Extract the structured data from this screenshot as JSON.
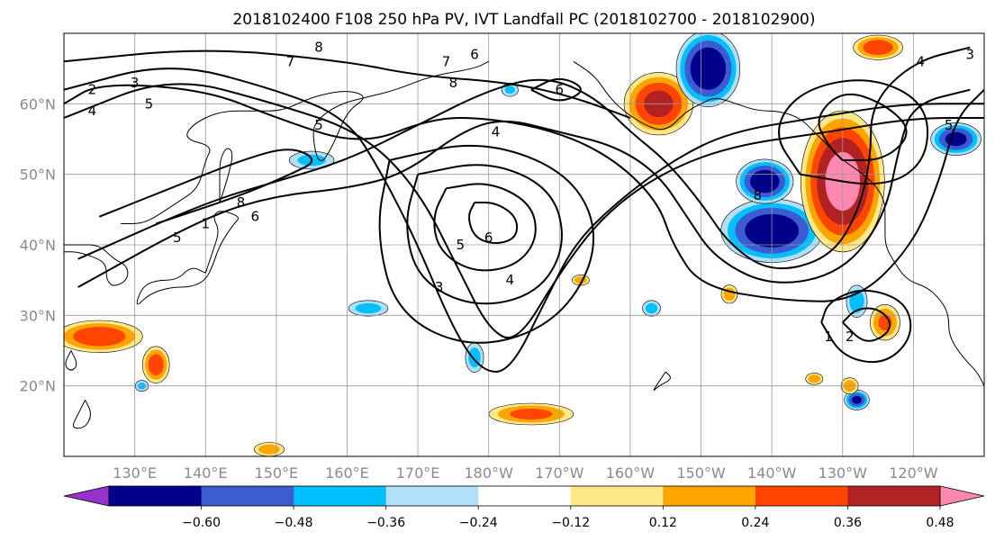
{
  "title": "2018102400 F108 250 hPa PV, IVT Landfall PC (2018102700 - 2018102900)",
  "map": {
    "lon_range": [
      120,
      250
    ],
    "lat_range": [
      10,
      70
    ],
    "lon_ticks": [
      {
        "lon": 130,
        "label": "130°E"
      },
      {
        "lon": 140,
        "label": "140°E"
      },
      {
        "lon": 150,
        "label": "150°E"
      },
      {
        "lon": 160,
        "label": "160°E"
      },
      {
        "lon": 170,
        "label": "170°E"
      },
      {
        "lon": 180,
        "label": "180°W"
      },
      {
        "lon": 190,
        "label": "170°W"
      },
      {
        "lon": 200,
        "label": "160°W"
      },
      {
        "lon": 210,
        "label": "150°W"
      },
      {
        "lon": 220,
        "label": "140°W"
      },
      {
        "lon": 230,
        "label": "130°W"
      },
      {
        "lon": 240,
        "label": "120°W"
      }
    ],
    "lat_ticks": [
      {
        "lat": 20,
        "label": "20°N"
      },
      {
        "lat": 30,
        "label": "30°N"
      },
      {
        "lat": 40,
        "label": "40°N"
      },
      {
        "lat": 50,
        "label": "50°N"
      },
      {
        "lat": 60,
        "label": "60°N"
      }
    ],
    "gridlines": true
  },
  "colorbar": {
    "colors": [
      "#9932cc",
      "#00008b",
      "#3b5bd0",
      "#00bfff",
      "#b0e0f8",
      "#ffffff",
      "#ffe888",
      "#ffa500",
      "#ff4500",
      "#b22222",
      "#ff88b0"
    ],
    "labels": [
      "−0.60",
      "−0.48",
      "−0.36",
      "−0.24",
      "−0.12",
      "0.12",
      "0.24",
      "0.36",
      "0.48",
      "0.60"
    ],
    "extend": "both"
  },
  "ivt_pc_blobs": [
    {
      "lon": 204,
      "lat": 60,
      "a": 5.5,
      "b": 5,
      "value": 0.5
    },
    {
      "lon": 211,
      "lat": 65,
      "a": 5,
      "b": 6,
      "value": -0.58
    },
    {
      "lon": 220,
      "lat": 42,
      "a": 8,
      "b": 5,
      "value": -0.56
    },
    {
      "lon": 219,
      "lat": 49,
      "a": 4.5,
      "b": 3.5,
      "value": -0.55
    },
    {
      "lon": 230,
      "lat": 49,
      "a": 6.5,
      "b": 11,
      "value": 0.64
    },
    {
      "lon": 125,
      "lat": 27,
      "a": 7,
      "b": 2.6,
      "value": 0.44
    },
    {
      "lon": 133,
      "lat": 23,
      "a": 2.2,
      "b": 3,
      "value": 0.42
    },
    {
      "lon": 186,
      "lat": 16,
      "a": 7,
      "b": 1.8,
      "value": 0.38
    },
    {
      "lon": 236,
      "lat": 29,
      "a": 2.5,
      "b": 3,
      "value": 0.36
    },
    {
      "lon": 232,
      "lat": 18,
      "a": 2,
      "b": 1.6,
      "value": -0.48
    },
    {
      "lon": 163,
      "lat": 31,
      "a": 3.5,
      "b": 1.4,
      "value": -0.27
    },
    {
      "lon": 178,
      "lat": 24,
      "a": 1.6,
      "b": 2.6,
      "value": -0.28
    },
    {
      "lon": 155,
      "lat": 52,
      "a": 4,
      "b": 1.6,
      "value": -0.26
    },
    {
      "lon": 246,
      "lat": 55,
      "a": 4,
      "b": 2.6,
      "value": -0.5
    },
    {
      "lon": 235,
      "lat": 68,
      "a": 4,
      "b": 2,
      "value": 0.44
    },
    {
      "lon": 232,
      "lat": 32,
      "a": 1.8,
      "b": 2.8,
      "value": -0.3
    },
    {
      "lon": 214,
      "lat": 33,
      "a": 1.4,
      "b": 1.6,
      "value": 0.3
    },
    {
      "lon": 203,
      "lat": 31,
      "a": 1.6,
      "b": 1.4,
      "value": -0.27
    },
    {
      "lon": 131,
      "lat": 20,
      "a": 1.2,
      "b": 1,
      "value": -0.25
    },
    {
      "lon": 231,
      "lat": 20,
      "a": 1.5,
      "b": 1.4,
      "value": 0.3
    },
    {
      "lon": 193,
      "lat": 35,
      "a": 1.5,
      "b": 0.9,
      "value": 0.3
    },
    {
      "lon": 226,
      "lat": 21,
      "a": 1.5,
      "b": 1,
      "value": 0.3
    },
    {
      "lon": 149,
      "lat": 11,
      "a": 2.6,
      "b": 1.2,
      "value": 0.3
    },
    {
      "lon": 183,
      "lat": 62,
      "a": 1.5,
      "b": 1.2,
      "value": -0.25
    }
  ],
  "pv_contours": [
    {
      "level": 7,
      "points": [
        [
          120,
          66
        ],
        [
          140,
          68
        ],
        [
          160,
          66
        ],
        [
          170,
          64
        ],
        [
          183,
          63
        ],
        [
          192,
          61
        ],
        [
          200,
          58
        ]
      ]
    },
    {
      "level": 6,
      "points": [
        [
          122,
          38
        ],
        [
          140,
          46
        ],
        [
          150,
          49
        ],
        [
          160,
          52
        ],
        [
          170,
          57
        ],
        [
          180,
          62
        ],
        [
          188,
          64
        ],
        [
          195,
          61
        ],
        [
          200,
          56
        ],
        [
          205,
          52
        ],
        [
          210,
          46
        ],
        [
          214,
          40
        ],
        [
          220,
          36
        ],
        [
          228,
          38
        ],
        [
          232,
          44
        ],
        [
          234,
          52
        ],
        [
          234,
          60
        ],
        [
          240,
          66
        ],
        [
          248,
          68
        ]
      ]
    },
    {
      "level": 5,
      "points": [
        [
          122,
          34
        ],
        [
          140,
          44
        ],
        [
          150,
          47
        ],
        [
          160,
          48
        ],
        [
          168,
          50
        ],
        [
          176,
          56
        ],
        [
          182,
          58
        ],
        [
          190,
          56
        ],
        [
          198,
          54
        ],
        [
          204,
          50
        ],
        [
          208,
          44
        ],
        [
          212,
          38
        ],
        [
          220,
          34
        ],
        [
          230,
          36
        ],
        [
          236,
          44
        ],
        [
          238,
          54
        ],
        [
          240,
          60
        ],
        [
          248,
          62
        ]
      ]
    },
    {
      "level": 4,
      "points": [
        [
          120,
          60
        ],
        [
          125,
          63
        ],
        [
          140,
          62
        ],
        [
          150,
          58
        ],
        [
          162,
          54
        ],
        [
          172,
          58
        ],
        [
          180,
          58
        ],
        [
          190,
          56
        ],
        [
          198,
          52
        ],
        [
          204,
          46
        ],
        [
          206,
          40
        ],
        [
          210,
          34
        ],
        [
          222,
          32
        ],
        [
          232,
          32
        ],
        [
          240,
          40
        ],
        [
          244,
          50
        ],
        [
          246,
          58
        ],
        [
          250,
          62
        ]
      ]
    },
    {
      "level": 3,
      "points": [
        [
          120,
          62
        ],
        [
          135,
          66
        ],
        [
          150,
          62
        ],
        [
          160,
          58
        ],
        [
          165,
          50
        ],
        [
          170,
          40
        ],
        [
          175,
          28
        ],
        [
          179,
          22
        ],
        [
          183,
          22
        ],
        [
          188,
          32
        ],
        [
          192,
          40
        ],
        [
          198,
          46
        ],
        [
          206,
          52
        ],
        [
          214,
          56
        ],
        [
          226,
          58
        ],
        [
          238,
          60
        ],
        [
          250,
          60
        ]
      ]
    },
    {
      "level": 2,
      "points": [
        [
          120,
          58
        ],
        [
          135,
          64
        ],
        [
          150,
          60
        ],
        [
          162,
          56
        ],
        [
          170,
          48
        ],
        [
          176,
          36
        ],
        [
          180,
          28
        ],
        [
          184,
          26
        ],
        [
          190,
          36
        ],
        [
          196,
          44
        ],
        [
          204,
          50
        ],
        [
          214,
          54
        ],
        [
          228,
          56
        ],
        [
          240,
          58
        ],
        [
          250,
          58
        ]
      ]
    },
    {
      "level": 6,
      "points": [
        [
          178,
          46
        ],
        [
          181,
          46
        ],
        [
          184,
          44
        ],
        [
          184,
          41
        ],
        [
          181,
          40
        ],
        [
          178,
          41
        ],
        [
          177,
          44
        ],
        [
          178,
          46
        ]
      ]
    },
    {
      "level": 5,
      "points": [
        [
          174,
          48
        ],
        [
          180,
          49
        ],
        [
          186,
          46
        ],
        [
          187,
          41
        ],
        [
          184,
          37
        ],
        [
          178,
          36
        ],
        [
          173,
          39
        ],
        [
          172,
          44
        ],
        [
          174,
          48
        ]
      ]
    },
    {
      "level": 4,
      "points": [
        [
          170,
          50
        ],
        [
          180,
          52
        ],
        [
          189,
          48
        ],
        [
          191,
          40
        ],
        [
          187,
          33
        ],
        [
          178,
          31
        ],
        [
          170,
          35
        ],
        [
          168,
          43
        ],
        [
          170,
          50
        ]
      ]
    },
    {
      "level": 3,
      "points": [
        [
          166,
          52
        ],
        [
          179,
          55
        ],
        [
          192,
          50
        ],
        [
          196,
          40
        ],
        [
          190,
          29
        ],
        [
          178,
          25
        ],
        [
          167,
          30
        ],
        [
          164,
          42
        ],
        [
          166,
          52
        ]
      ]
    },
    {
      "level": 2,
      "points": [
        [
          230,
          29
        ],
        [
          233,
          26
        ],
        [
          236,
          27
        ],
        [
          237,
          29
        ],
        [
          235,
          31
        ],
        [
          232,
          31
        ],
        [
          230,
          29
        ]
      ]
    },
    {
      "level": 1,
      "points": [
        [
          227,
          29
        ],
        [
          230,
          24
        ],
        [
          236,
          23
        ],
        [
          240,
          27
        ],
        [
          239,
          32
        ],
        [
          233,
          34
        ],
        [
          228,
          32
        ],
        [
          227,
          29
        ]
      ]
    },
    {
      "level": 8,
      "points": [
        [
          133,
          43
        ],
        [
          145,
          47
        ],
        [
          152,
          50
        ],
        [
          156,
          52
        ],
        [
          152,
          54
        ],
        [
          145,
          52
        ],
        [
          135,
          48
        ],
        [
          125,
          44
        ]
      ]
    },
    {
      "level": 8,
      "points": [
        [
          230,
          52
        ],
        [
          236,
          52
        ],
        [
          240,
          56
        ],
        [
          236,
          60
        ],
        [
          230,
          62
        ],
        [
          226,
          58
        ],
        [
          228,
          54
        ],
        [
          230,
          52
        ]
      ]
    },
    {
      "level": 7,
      "points": [
        [
          224,
          50
        ],
        [
          236,
          48
        ],
        [
          242,
          52
        ],
        [
          242,
          60
        ],
        [
          234,
          64
        ],
        [
          224,
          62
        ],
        [
          220,
          56
        ],
        [
          224,
          50
        ]
      ]
    },
    {
      "level": 6,
      "points": [
        [
          186,
          62
        ],
        [
          190,
          60
        ],
        [
          194,
          62
        ],
        [
          190,
          64
        ],
        [
          186,
          62
        ]
      ]
    }
  ],
  "contour_labels": [
    {
      "text": "2",
      "lon": 124,
      "lat": 62
    },
    {
      "text": "3",
      "lon": 130,
      "lat": 63
    },
    {
      "text": "4",
      "lon": 124,
      "lat": 59
    },
    {
      "text": "5",
      "lon": 132,
      "lat": 60
    },
    {
      "text": "7",
      "lon": 152,
      "lat": 66
    },
    {
      "text": "8",
      "lon": 156,
      "lat": 68
    },
    {
      "text": "7",
      "lon": 174,
      "lat": 66
    },
    {
      "text": "6",
      "lon": 178,
      "lat": 67
    },
    {
      "text": "8",
      "lon": 175,
      "lat": 63
    },
    {
      "text": "5",
      "lon": 156,
      "lat": 57
    },
    {
      "text": "4",
      "lon": 181,
      "lat": 56
    },
    {
      "text": "8",
      "lon": 145,
      "lat": 46
    },
    {
      "text": "6",
      "lon": 147,
      "lat": 44
    },
    {
      "text": "6",
      "lon": 180,
      "lat": 41
    },
    {
      "text": "5",
      "lon": 176,
      "lat": 40
    },
    {
      "text": "3",
      "lon": 173,
      "lat": 34
    },
    {
      "text": "4",
      "lon": 183,
      "lat": 35
    },
    {
      "text": "6",
      "lon": 190,
      "lat": 62
    },
    {
      "text": "8",
      "lon": 218,
      "lat": 47
    },
    {
      "text": "2",
      "lon": 231,
      "lat": 27
    },
    {
      "text": "1",
      "lon": 228,
      "lat": 27
    },
    {
      "text": "4",
      "lon": 241,
      "lat": 66
    },
    {
      "text": "3",
      "lon": 248,
      "lat": 67
    },
    {
      "text": "5",
      "lon": 245,
      "lat": 57
    },
    {
      "text": "1",
      "lon": 140,
      "lat": 43
    },
    {
      "text": "5",
      "lon": 136,
      "lat": 41
    }
  ],
  "coastlines": [
    [
      [
        140,
        36
      ],
      [
        141,
        39
      ],
      [
        142,
        42
      ],
      [
        141,
        44
      ],
      [
        142,
        45
      ],
      [
        145,
        44
      ],
      [
        144,
        43
      ],
      [
        142,
        40
      ],
      [
        141,
        37
      ],
      [
        140,
        35
      ],
      [
        138,
        34
      ],
      [
        135,
        34
      ],
      [
        132,
        33
      ],
      [
        130,
        31
      ],
      [
        131,
        34
      ],
      [
        133,
        35
      ],
      [
        136,
        35
      ],
      [
        138,
        37
      ],
      [
        140,
        36
      ]
    ],
    [
      [
        120,
        40
      ],
      [
        122,
        40
      ],
      [
        125,
        40
      ],
      [
        127,
        38
      ],
      [
        129,
        37
      ],
      [
        129,
        35
      ],
      [
        127,
        34
      ],
      [
        126,
        35
      ],
      [
        126,
        37
      ],
      [
        125,
        38
      ],
      [
        122,
        39
      ],
      [
        120,
        39
      ]
    ],
    [
      [
        128,
        43
      ],
      [
        131,
        43
      ],
      [
        133,
        44
      ],
      [
        136,
        46
      ],
      [
        139,
        48
      ],
      [
        140,
        52
      ],
      [
        141,
        54
      ],
      [
        137,
        55
      ],
      [
        138,
        57
      ],
      [
        142,
        59
      ],
      [
        147,
        59
      ],
      [
        151,
        59
      ],
      [
        155,
        61
      ],
      [
        160,
        62
      ],
      [
        163,
        61
      ],
      [
        160,
        59
      ],
      [
        158,
        54
      ],
      [
        156,
        51
      ],
      [
        155,
        56
      ],
      [
        156,
        58
      ],
      [
        159,
        60
      ],
      [
        163,
        61
      ],
      [
        167,
        62
      ],
      [
        172,
        64
      ],
      [
        178,
        65
      ],
      [
        180,
        66
      ]
    ],
    [
      [
        142,
        46
      ],
      [
        143,
        49
      ],
      [
        144,
        53
      ],
      [
        143,
        54
      ],
      [
        142,
        52
      ],
      [
        142,
        49
      ],
      [
        142,
        46
      ]
    ],
    [
      [
        192,
        66
      ],
      [
        195,
        64
      ],
      [
        197,
        61
      ],
      [
        199,
        59
      ],
      [
        202,
        57
      ],
      [
        205,
        56
      ],
      [
        208,
        59
      ],
      [
        210,
        60
      ],
      [
        212,
        61
      ],
      [
        215,
        60
      ],
      [
        218,
        59
      ],
      [
        221,
        59
      ],
      [
        224,
        58
      ],
      [
        226,
        56
      ],
      [
        228,
        54
      ],
      [
        230,
        52
      ],
      [
        233,
        50
      ],
      [
        235,
        48
      ],
      [
        236,
        46
      ],
      [
        236,
        43
      ],
      [
        236,
        40
      ],
      [
        237,
        38
      ],
      [
        239,
        35
      ],
      [
        242,
        34
      ],
      [
        244,
        32
      ],
      [
        245,
        30
      ],
      [
        245,
        27
      ],
      [
        247,
        24
      ],
      [
        249,
        22
      ],
      [
        250,
        20
      ]
    ],
    [
      [
        205,
        22
      ],
      [
        206,
        21
      ],
      [
        204,
        20
      ],
      [
        203,
        19
      ],
      [
        205,
        22
      ]
    ],
    [
      [
        121,
        25
      ],
      [
        122,
        23
      ],
      [
        121,
        22
      ],
      [
        120,
        23
      ],
      [
        121,
        25
      ]
    ],
    [
      [
        123,
        18
      ],
      [
        124,
        16
      ],
      [
        123,
        14
      ],
      [
        121,
        14
      ],
      [
        122,
        16
      ],
      [
        123,
        18
      ]
    ]
  ]
}
